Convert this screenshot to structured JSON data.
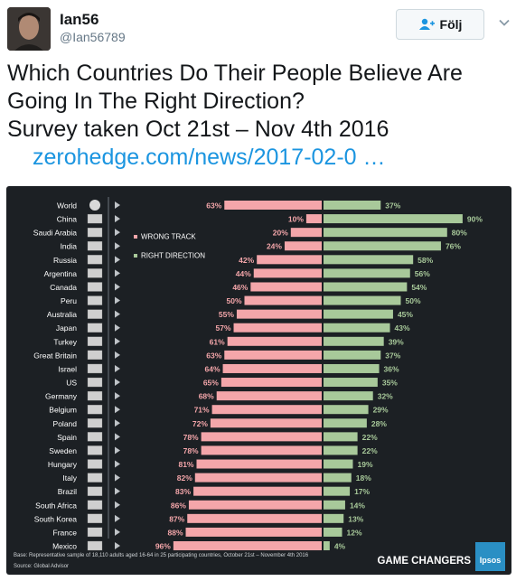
{
  "user": {
    "name": "Ian56",
    "handle": "@Ian56789",
    "follow_label": "Följ"
  },
  "tweet": {
    "line1": "Which Countries Do Their People Believe Are",
    "line2": "Going In The Right Direction?",
    "line3": "Survey taken Oct 21st – Nov 4th 2016",
    "link": "zerohedge.com/news/2017-02-0 …"
  },
  "icons": [
    "user-avatar",
    "add-user-icon",
    "chevron-down-icon",
    "globe-icon",
    "play-arrow-icon",
    "flag-icon",
    "ipsos-logo"
  ],
  "colors": {
    "wrong_track": "#f4a6aa",
    "right_direction": "#a8c99a",
    "panel_bg": "#1c2024",
    "link": "#1b95e0"
  },
  "chart_data": {
    "type": "bar",
    "legend": {
      "wrong": "WRONG TRACK",
      "right": "RIGHT DIRECTION"
    },
    "categories": [
      "World",
      "China",
      "Saudi Arabia",
      "India",
      "Russia",
      "Argentina",
      "Canada",
      "Peru",
      "Australia",
      "Japan",
      "Turkey",
      "Great Britain",
      "Israel",
      "US",
      "Germany",
      "Belgium",
      "Poland",
      "Spain",
      "Sweden",
      "Hungary",
      "Italy",
      "Brazil",
      "South Africa",
      "South Korea",
      "France",
      "Mexico"
    ],
    "series": [
      {
        "name": "WRONG TRACK",
        "values": [
          63,
          10,
          20,
          24,
          42,
          44,
          46,
          50,
          55,
          57,
          61,
          63,
          64,
          65,
          68,
          71,
          72,
          78,
          78,
          81,
          82,
          83,
          86,
          87,
          88,
          96
        ]
      },
      {
        "name": "RIGHT DIRECTION",
        "values": [
          37,
          90,
          80,
          76,
          58,
          56,
          54,
          50,
          45,
          43,
          39,
          37,
          36,
          35,
          32,
          29,
          28,
          22,
          22,
          19,
          18,
          17,
          14,
          13,
          12,
          4
        ]
      }
    ],
    "footnote1": "Base: Representative sample of 18,110 adults aged 16-64 in 25 participating countries, October 21st – November 4th 2016",
    "footnote2": "Source: Global Advisor",
    "brand": "GAME CHANGERS",
    "logo": "Ipsos"
  }
}
